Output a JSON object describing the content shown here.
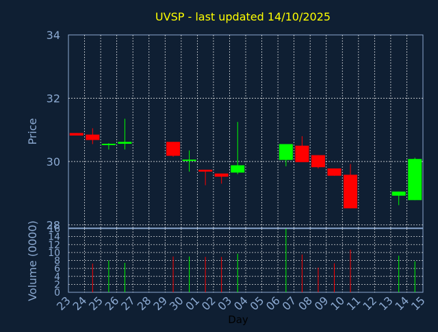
{
  "chart_data": {
    "type": "candlestick",
    "title": "UVSP - last updated 14/10/2025",
    "xlabel": "Day",
    "x_ticks": [
      "23",
      "24",
      "25",
      "26",
      "27",
      "28",
      "29",
      "30",
      "01",
      "02",
      "03",
      "04",
      "05",
      "06",
      "07",
      "08",
      "09",
      "10",
      "11",
      "12",
      "13",
      "14",
      "15"
    ],
    "price": {
      "ylabel": "Price",
      "ylim": [
        27.9,
        34
      ],
      "yticks": [
        28,
        30,
        32,
        34
      ],
      "candles": [
        {
          "day": "23",
          "open": 30.9,
          "high": 30.9,
          "low": 30.82,
          "close": 30.82
        },
        {
          "day": "24",
          "open": 30.85,
          "high": 31.05,
          "low": 30.55,
          "close": 30.68
        },
        {
          "day": "25",
          "open": 30.52,
          "high": 30.58,
          "low": 30.38,
          "close": 30.56
        },
        {
          "day": "26",
          "open": 30.56,
          "high": 31.35,
          "low": 30.38,
          "close": 30.62
        },
        {
          "day": "29",
          "open": 30.62,
          "high": 30.62,
          "low": 30.15,
          "close": 30.18
        },
        {
          "day": "30",
          "open": 30.02,
          "high": 30.35,
          "low": 29.68,
          "close": 30.06
        },
        {
          "day": "01",
          "open": 29.74,
          "high": 29.74,
          "low": 29.25,
          "close": 29.68
        },
        {
          "day": "02",
          "open": 29.62,
          "high": 29.62,
          "low": 29.3,
          "close": 29.52
        },
        {
          "day": "03",
          "open": 29.65,
          "high": 31.25,
          "low": 29.6,
          "close": 29.88
        },
        {
          "day": "06",
          "open": 30.05,
          "high": 30.55,
          "low": 29.85,
          "close": 30.55
        },
        {
          "day": "07",
          "open": 30.5,
          "high": 30.8,
          "low": 30.0,
          "close": 29.98
        },
        {
          "day": "08",
          "open": 30.2,
          "high": 30.2,
          "low": 29.78,
          "close": 29.82
        },
        {
          "day": "09",
          "open": 29.78,
          "high": 29.78,
          "low": 29.55,
          "close": 29.55
        },
        {
          "day": "10",
          "open": 29.58,
          "high": 29.92,
          "low": 28.52,
          "close": 28.52
        },
        {
          "day": "13",
          "open": 28.92,
          "high": 29.05,
          "low": 28.62,
          "close": 29.05
        },
        {
          "day": "14",
          "open": 28.78,
          "high": 30.12,
          "low": 28.78,
          "close": 30.08
        }
      ]
    },
    "volume": {
      "ylabel": "Volume (0000)",
      "ylim": [
        0,
        16
      ],
      "yticks": [
        0,
        2,
        4,
        6,
        8,
        10,
        12,
        14,
        16
      ],
      "bars": [
        {
          "day": "24",
          "value": 7.2
        },
        {
          "day": "25",
          "value": 8.0
        },
        {
          "day": "26",
          "value": 7.4
        },
        {
          "day": "29",
          "value": 9.0
        },
        {
          "day": "30",
          "value": 9.0
        },
        {
          "day": "01",
          "value": 8.9
        },
        {
          "day": "02",
          "value": 8.9
        },
        {
          "day": "03",
          "value": 9.7
        },
        {
          "day": "06",
          "value": 16.0
        },
        {
          "day": "07",
          "value": 9.5
        },
        {
          "day": "08",
          "value": 6.2
        },
        {
          "day": "09",
          "value": 7.3
        },
        {
          "day": "10",
          "value": 10.7
        },
        {
          "day": "13",
          "value": 9.2
        },
        {
          "day": "14",
          "value": 7.8
        }
      ]
    },
    "grid": true,
    "colors": {
      "background": "#0f1f33",
      "frame": "#8caad2",
      "axis_text": "#8caad2",
      "title": "#ffff00",
      "grid": "#ffffff",
      "up": "#00ff00",
      "down": "#ff0000",
      "xlabel": "#000000"
    }
  }
}
